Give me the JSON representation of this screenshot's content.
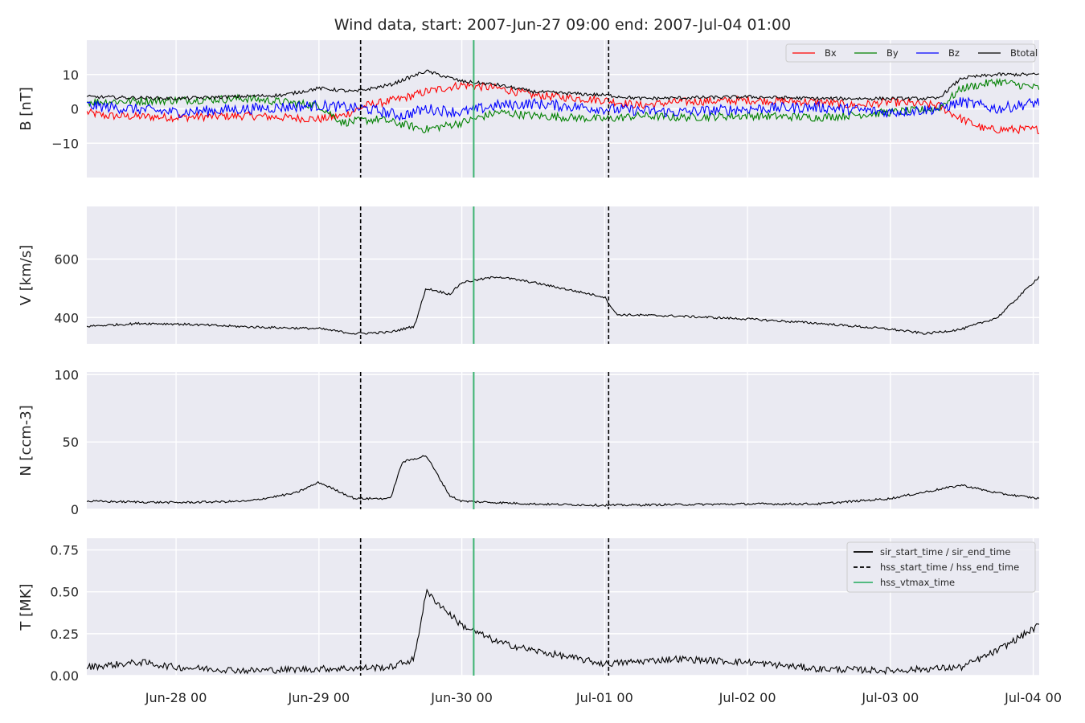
{
  "chart_data": {
    "type": "line",
    "title": "Wind data, start: 2007-Jun-27 09:00  end: 2007-Jul-04 01:00",
    "x_range": [
      "2007-06-27T09:00",
      "2007-07-04T01:00"
    ],
    "x_ticks": [
      {
        "date": "2007-06-28T00:00",
        "label": "Jun-28 00"
      },
      {
        "date": "2007-06-29T00:00",
        "label": "Jun-29 00"
      },
      {
        "date": "2007-06-30T00:00",
        "label": "Jun-30 00"
      },
      {
        "date": "2007-07-01T00:00",
        "label": "Jul-01 00"
      },
      {
        "date": "2007-07-02T00:00",
        "label": "Jul-02 00"
      },
      {
        "date": "2007-07-03T00:00",
        "label": "Jul-03 00"
      },
      {
        "date": "2007-07-04T00:00",
        "label": "Jul-04 00"
      }
    ],
    "grid": true,
    "event_lines": [
      {
        "name": "hss_start_time / hss_end_time",
        "date": "2007-06-29T07:00",
        "style": "dashed",
        "color": "#000000"
      },
      {
        "name": "hss_vtmax_time",
        "date": "2007-06-30T02:00",
        "style": "solid",
        "color": "#3cb371"
      },
      {
        "name": "hss_start_time / hss_end_time",
        "date": "2007-07-01T00:40",
        "style": "dashed",
        "color": "#000000"
      }
    ],
    "panels": [
      {
        "ylabel": "B [nT]",
        "ylim": [
          -20,
          20
        ],
        "yticks": [
          {
            "v": 10,
            "label": "10"
          },
          {
            "v": 0,
            "label": "0"
          },
          {
            "v": -10,
            "label": "−10"
          }
        ],
        "legend": {
          "placement": "top-right",
          "entries": [
            "Bx",
            "By",
            "Bz",
            "Btotal"
          ]
        },
        "series": [
          {
            "name": "Bx",
            "color": "#ff0000",
            "noise": 1.2,
            "points": [
              [
                "2007-06-27T09:00",
                -1
              ],
              [
                "2007-06-27T12:00",
                -2
              ],
              [
                "2007-06-28T00:00",
                -2.5
              ],
              [
                "2007-06-28T12:00",
                -2
              ],
              [
                "2007-06-29T00:00",
                -3
              ],
              [
                "2007-06-29T04:00",
                -2
              ],
              [
                "2007-06-29T08:00",
                1
              ],
              [
                "2007-06-29T14:00",
                3
              ],
              [
                "2007-06-29T18:00",
                5
              ],
              [
                "2007-06-30T00:00",
                7
              ],
              [
                "2007-06-30T06:00",
                6
              ],
              [
                "2007-06-30T12:00",
                4
              ],
              [
                "2007-07-01T00:00",
                2.5
              ],
              [
                "2007-07-01T06:00",
                1
              ],
              [
                "2007-07-01T12:00",
                2
              ],
              [
                "2007-07-02T00:00",
                2.5
              ],
              [
                "2007-07-02T12:00",
                2
              ],
              [
                "2007-07-02T18:00",
                1
              ],
              [
                "2007-07-03T00:00",
                2
              ],
              [
                "2007-07-03T08:00",
                1
              ],
              [
                "2007-07-03T12:00",
                -3
              ],
              [
                "2007-07-03T16:00",
                -6
              ],
              [
                "2007-07-04T01:00",
                -6
              ]
            ]
          },
          {
            "name": "By",
            "color": "#008000",
            "noise": 1.2,
            "points": [
              [
                "2007-06-27T09:00",
                2
              ],
              [
                "2007-06-28T00:00",
                2.5
              ],
              [
                "2007-06-28T12:00",
                3
              ],
              [
                "2007-06-29T00:00",
                1
              ],
              [
                "2007-06-29T04:00",
                -4
              ],
              [
                "2007-06-29T10:00",
                -3
              ],
              [
                "2007-06-29T18:00",
                -6
              ],
              [
                "2007-06-30T00:00",
                -4
              ],
              [
                "2007-06-30T06:00",
                -1
              ],
              [
                "2007-06-30T12:00",
                -2
              ],
              [
                "2007-07-01T00:00",
                -3
              ],
              [
                "2007-07-01T06:00",
                -2
              ],
              [
                "2007-07-01T12:00",
                -2.5
              ],
              [
                "2007-07-02T00:00",
                -2
              ],
              [
                "2007-07-02T12:00",
                -2.5
              ],
              [
                "2007-07-03T00:00",
                -1
              ],
              [
                "2007-07-03T08:00",
                0
              ],
              [
                "2007-07-03T12:00",
                6
              ],
              [
                "2007-07-03T18:00",
                8
              ],
              [
                "2007-07-04T01:00",
                6
              ]
            ]
          },
          {
            "name": "Bz",
            "color": "#0000ff",
            "noise": 1.6,
            "points": [
              [
                "2007-06-27T09:00",
                1
              ],
              [
                "2007-06-28T00:00",
                -1
              ],
              [
                "2007-06-28T12:00",
                0
              ],
              [
                "2007-06-29T00:00",
                1
              ],
              [
                "2007-06-29T08:00",
                0
              ],
              [
                "2007-06-29T14:00",
                -2
              ],
              [
                "2007-06-29T18:00",
                0
              ],
              [
                "2007-06-30T00:00",
                -1
              ],
              [
                "2007-06-30T06:00",
                1
              ],
              [
                "2007-06-30T12:00",
                1.5
              ],
              [
                "2007-07-01T00:00",
                0
              ],
              [
                "2007-07-01T12:00",
                -1
              ],
              [
                "2007-07-02T00:00",
                0
              ],
              [
                "2007-07-02T12:00",
                0.5
              ],
              [
                "2007-07-03T00:00",
                -1
              ],
              [
                "2007-07-03T08:00",
                0
              ],
              [
                "2007-07-03T12:00",
                2
              ],
              [
                "2007-07-03T18:00",
                0
              ],
              [
                "2007-07-04T01:00",
                2
              ]
            ]
          },
          {
            "name": "Btotal",
            "color": "#000000",
            "noise": 0.5,
            "points": [
              [
                "2007-06-27T09:00",
                3.5
              ],
              [
                "2007-06-28T00:00",
                3
              ],
              [
                "2007-06-28T18:00",
                4
              ],
              [
                "2007-06-29T00:00",
                6
              ],
              [
                "2007-06-29T06:00",
                5
              ],
              [
                "2007-06-29T12:00",
                7
              ],
              [
                "2007-06-29T18:00",
                11
              ],
              [
                "2007-06-30T00:00",
                8
              ],
              [
                "2007-06-30T06:00",
                7
              ],
              [
                "2007-06-30T12:00",
                5
              ],
              [
                "2007-07-01T00:00",
                4
              ],
              [
                "2007-07-01T06:00",
                3
              ],
              [
                "2007-07-02T00:00",
                3.5
              ],
              [
                "2007-07-02T12:00",
                3
              ],
              [
                "2007-07-03T00:00",
                3
              ],
              [
                "2007-07-03T08:00",
                3
              ],
              [
                "2007-07-03T12:00",
                9
              ],
              [
                "2007-07-03T18:00",
                10
              ],
              [
                "2007-07-04T01:00",
                10
              ]
            ]
          }
        ]
      },
      {
        "ylabel": "V [km/s]",
        "ylim": [
          310,
          780
        ],
        "yticks": [
          {
            "v": 600,
            "label": "600"
          },
          {
            "v": 400,
            "label": "400"
          }
        ],
        "series": [
          {
            "name": "",
            "color": "#000000",
            "noise": 4,
            "points": [
              [
                "2007-06-27T09:00",
                370
              ],
              [
                "2007-06-27T18:00",
                380
              ],
              [
                "2007-06-28T00:00",
                378
              ],
              [
                "2007-06-28T12:00",
                368
              ],
              [
                "2007-06-29T00:00",
                362
              ],
              [
                "2007-06-29T06:00",
                345
              ],
              [
                "2007-06-29T12:00",
                350
              ],
              [
                "2007-06-29T16:00",
                370
              ],
              [
                "2007-06-29T18:00",
                500
              ],
              [
                "2007-06-29T22:00",
                480
              ],
              [
                "2007-06-30T00:00",
                520
              ],
              [
                "2007-06-30T06:00",
                540
              ],
              [
                "2007-06-30T12:00",
                520
              ],
              [
                "2007-07-01T00:00",
                470
              ],
              [
                "2007-07-01T02:00",
                410
              ],
              [
                "2007-07-01T12:00",
                405
              ],
              [
                "2007-07-02T00:00",
                395
              ],
              [
                "2007-07-02T12:00",
                380
              ],
              [
                "2007-07-03T00:00",
                360
              ],
              [
                "2007-07-03T06:00",
                345
              ],
              [
                "2007-07-03T12:00",
                360
              ],
              [
                "2007-07-03T18:00",
                400
              ],
              [
                "2007-07-04T01:00",
                540
              ]
            ]
          }
        ]
      },
      {
        "ylabel": "N [ccm-3]",
        "ylim": [
          0,
          102
        ],
        "yticks": [
          {
            "v": 100,
            "label": "100"
          },
          {
            "v": 50,
            "label": "50"
          },
          {
            "v": 0,
            "label": "0"
          }
        ],
        "series": [
          {
            "name": "",
            "color": "#000000",
            "noise": 0.8,
            "points": [
              [
                "2007-06-27T09:00",
                6
              ],
              [
                "2007-06-28T00:00",
                5
              ],
              [
                "2007-06-28T12:00",
                6
              ],
              [
                "2007-06-28T20:00",
                12
              ],
              [
                "2007-06-29T00:00",
                20
              ],
              [
                "2007-06-29T06:00",
                8
              ],
              [
                "2007-06-29T12:00",
                8
              ],
              [
                "2007-06-29T14:00",
                35
              ],
              [
                "2007-06-29T18:00",
                40
              ],
              [
                "2007-06-29T22:00",
                10
              ],
              [
                "2007-06-30T00:00",
                6
              ],
              [
                "2007-06-30T12:00",
                4
              ],
              [
                "2007-07-01T00:00",
                3
              ],
              [
                "2007-07-02T00:00",
                4
              ],
              [
                "2007-07-02T12:00",
                4
              ],
              [
                "2007-07-03T00:00",
                8
              ],
              [
                "2007-07-03T12:00",
                18
              ],
              [
                "2007-07-03T18:00",
                12
              ],
              [
                "2007-07-04T01:00",
                8
              ]
            ]
          }
        ]
      },
      {
        "ylabel": "T [MK]",
        "ylim": [
          0,
          0.82
        ],
        "yticks": [
          {
            "v": 0.75,
            "label": "0.75"
          },
          {
            "v": 0.5,
            "label": "0.50"
          },
          {
            "v": 0.25,
            "label": "0.25"
          },
          {
            "v": 0,
            "label": "0.00"
          }
        ],
        "legend": {
          "placement": "top-right",
          "entries": [
            "sir_start_time / sir_end_time",
            "hss_start_time / hss_end_time",
            "hss_vtmax_time"
          ]
        },
        "series": [
          {
            "name": "",
            "color": "#000000",
            "noise": 0.02,
            "points": [
              [
                "2007-06-27T09:00",
                0.05
              ],
              [
                "2007-06-27T18:00",
                0.08
              ],
              [
                "2007-06-28T00:00",
                0.05
              ],
              [
                "2007-06-28T12:00",
                0.03
              ],
              [
                "2007-06-29T00:00",
                0.04
              ],
              [
                "2007-06-29T12:00",
                0.05
              ],
              [
                "2007-06-29T16:00",
                0.1
              ],
              [
                "2007-06-29T18:00",
                0.5
              ],
              [
                "2007-06-30T00:00",
                0.3
              ],
              [
                "2007-06-30T06:00",
                0.2
              ],
              [
                "2007-06-30T12:00",
                0.15
              ],
              [
                "2007-07-01T00:00",
                0.07
              ],
              [
                "2007-07-01T12:00",
                0.1
              ],
              [
                "2007-07-02T00:00",
                0.08
              ],
              [
                "2007-07-02T12:00",
                0.04
              ],
              [
                "2007-07-03T00:00",
                0.03
              ],
              [
                "2007-07-03T12:00",
                0.05
              ],
              [
                "2007-07-03T18:00",
                0.15
              ],
              [
                "2007-07-04T01:00",
                0.3
              ]
            ]
          }
        ]
      }
    ]
  }
}
